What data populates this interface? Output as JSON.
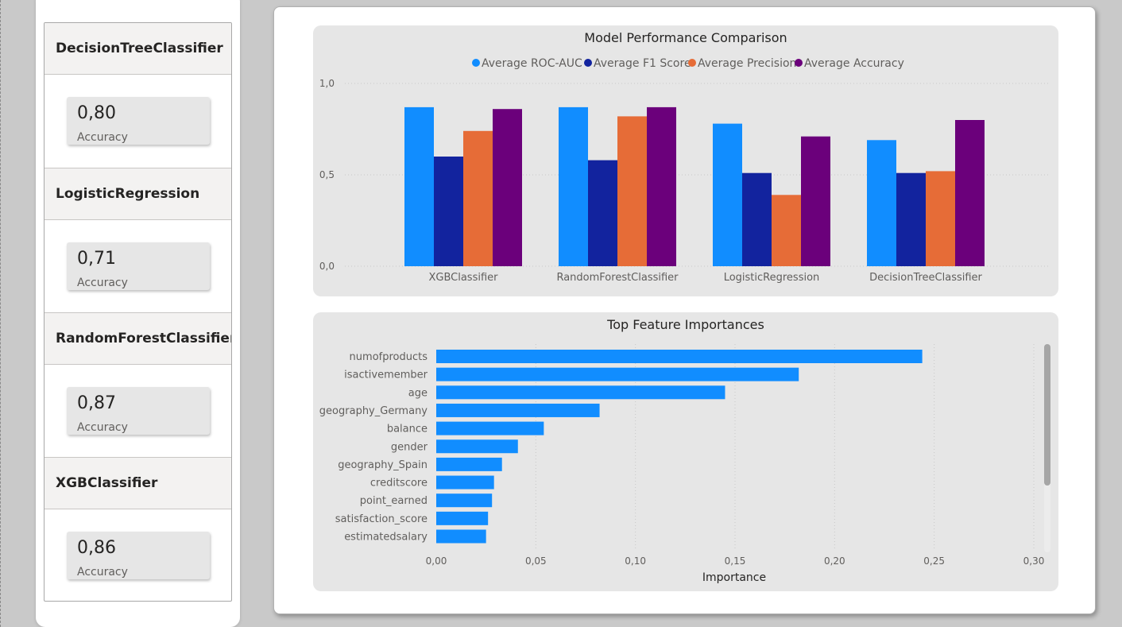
{
  "models": [
    {
      "name": "DecisionTreeClassifier",
      "value": "0,80",
      "label": "Accuracy"
    },
    {
      "name": "LogisticRegression",
      "value": "0,71",
      "label": "Accuracy"
    },
    {
      "name": "RandomForestClassifier",
      "value": "0,87",
      "label": "Accuracy"
    },
    {
      "name": "XGBClassifier",
      "value": "0,86",
      "label": "Accuracy"
    }
  ],
  "chart_data": [
    {
      "type": "bar",
      "title": "Model Performance Comparison",
      "categories": [
        "XGBClassifier",
        "RandomForestClassifier",
        "LogisticRegression",
        "DecisionTreeClassifier"
      ],
      "series": [
        {
          "name": "Average ROC-AUC",
          "color": "#118DFF",
          "values": [
            0.87,
            0.87,
            0.78,
            0.69
          ]
        },
        {
          "name": "Average F1 Score",
          "color": "#12239E",
          "values": [
            0.6,
            0.58,
            0.51,
            0.51
          ]
        },
        {
          "name": "Average Precision",
          "color": "#E66C37",
          "values": [
            0.74,
            0.82,
            0.39,
            0.52
          ]
        },
        {
          "name": "Average Accuracy",
          "color": "#6B007B",
          "values": [
            0.86,
            0.87,
            0.71,
            0.8
          ]
        }
      ],
      "ylim": [
        0,
        1
      ],
      "yticks": [
        "0,0",
        "0,5",
        "1,0"
      ],
      "legend_position": "top-center",
      "grid": true
    },
    {
      "type": "bar",
      "orientation": "horizontal",
      "title": "Top Feature Importances",
      "categories": [
        "numofproducts",
        "isactivemember",
        "age",
        "geography_Germany",
        "balance",
        "gender",
        "geography_Spain",
        "creditscore",
        "point_earned",
        "satisfaction_score",
        "estimatedsalary"
      ],
      "values": [
        0.244,
        0.182,
        0.145,
        0.082,
        0.054,
        0.041,
        0.033,
        0.029,
        0.028,
        0.026,
        0.025
      ],
      "color": "#118DFF",
      "xlabel": "Importance",
      "xlim": [
        0,
        0.3
      ],
      "xticks": [
        "0,00",
        "0,05",
        "0,10",
        "0,15",
        "0,20",
        "0,25",
        "0,30"
      ],
      "grid": true
    }
  ]
}
